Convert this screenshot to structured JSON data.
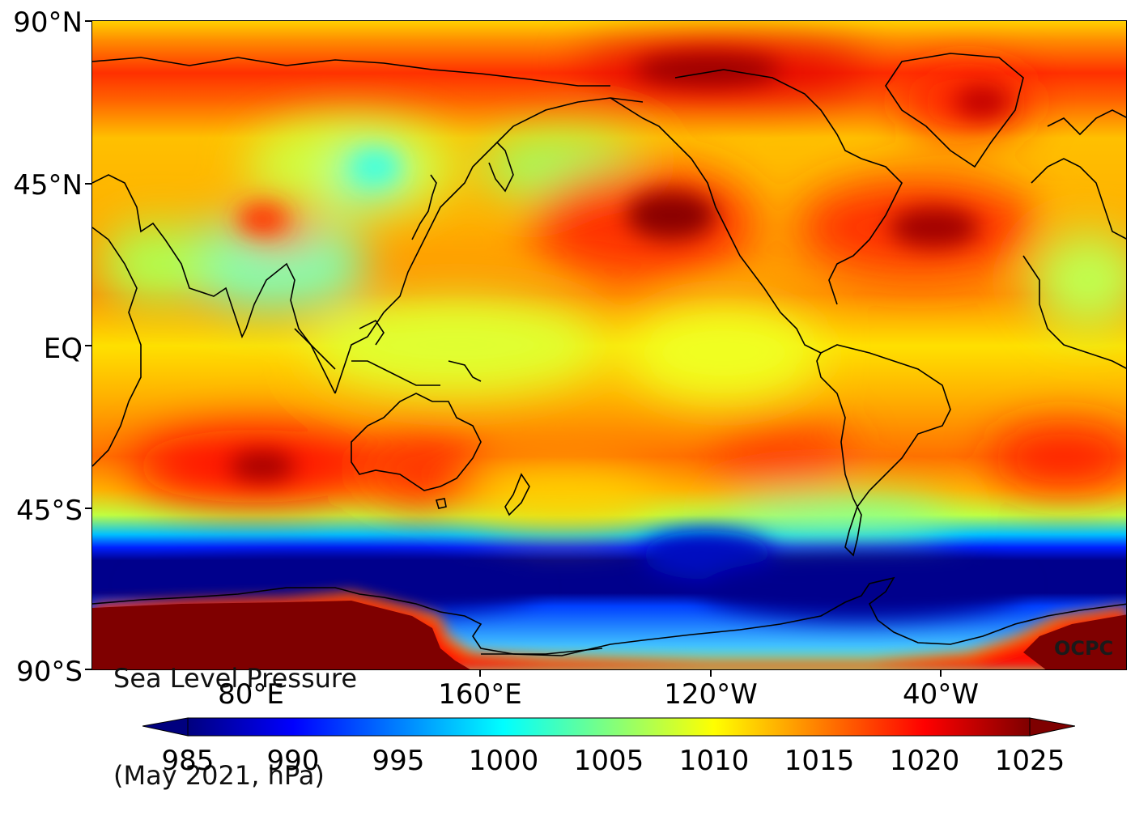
{
  "map": {
    "title_line1": "Sea Level Pressure",
    "title_line2": "(May 2021, hPa)",
    "credit": "OCPC",
    "lat_labels": [
      "90°N",
      "45°N",
      "EQ",
      "45°S",
      "90°S"
    ],
    "lon_labels": [
      "80°E",
      "160°E",
      "120°W",
      "40°W"
    ],
    "colorbar": {
      "ticks": [
        "985",
        "990",
        "995",
        "1000",
        "1005",
        "1010",
        "1015",
        "1020",
        "1025"
      ],
      "min": 985,
      "max": 1025,
      "colormap": "jet",
      "colors": [
        "#00007f",
        "#0000ff",
        "#007fff",
        "#00ffff",
        "#7fff7f",
        "#ffff00",
        "#ff7f00",
        "#ff0000",
        "#7f0000"
      ]
    }
  }
}
